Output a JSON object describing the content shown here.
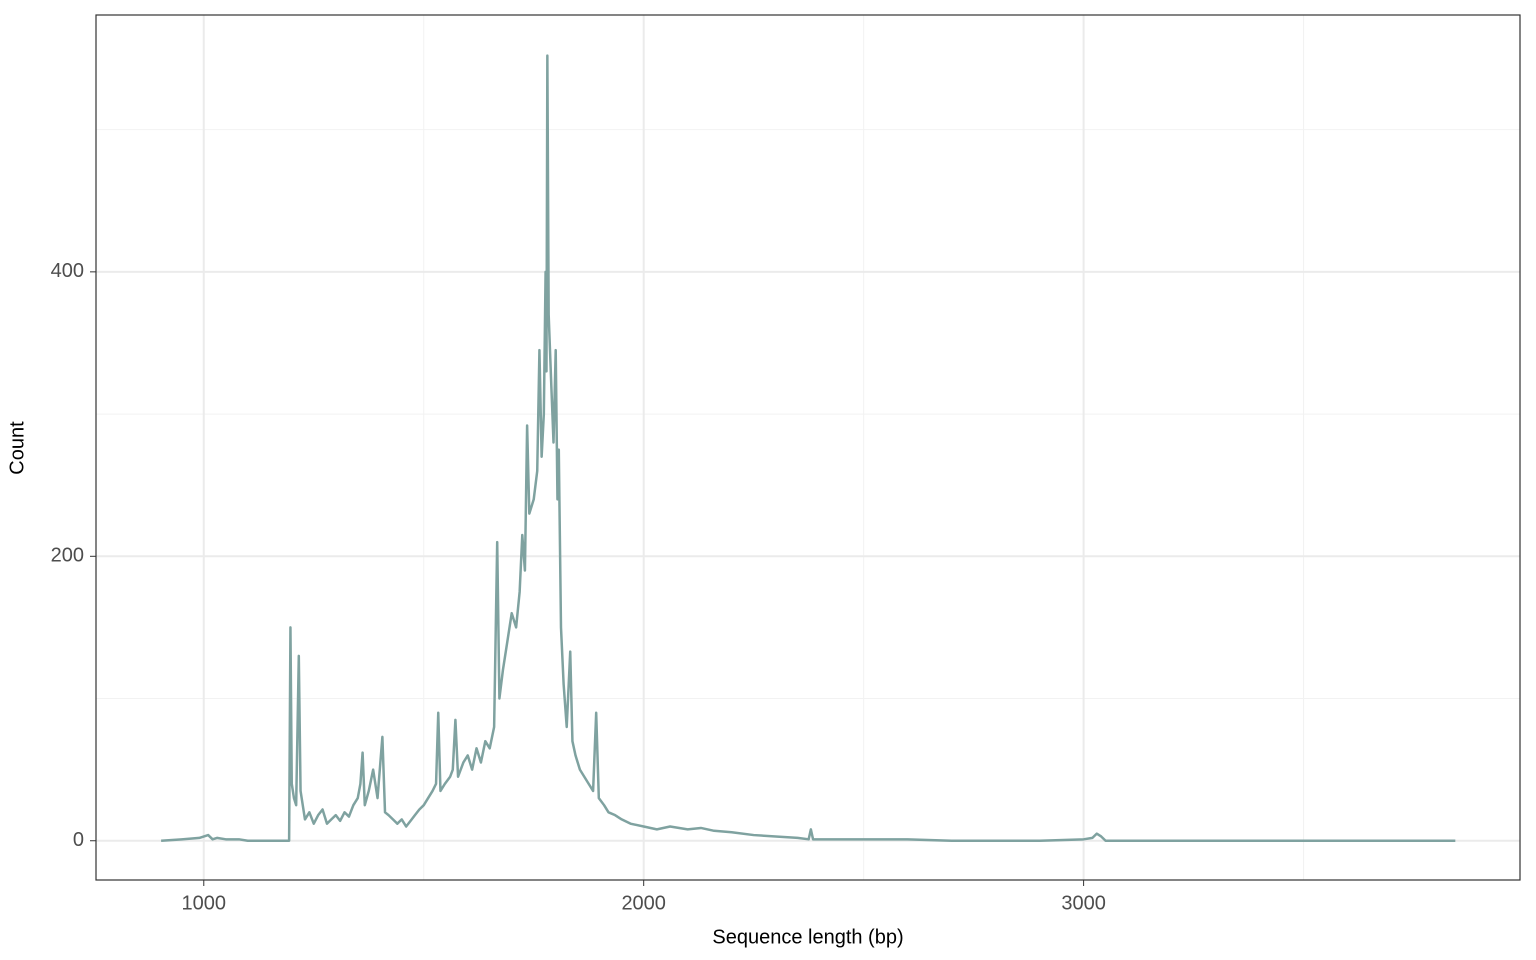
{
  "chart_data": {
    "type": "line",
    "x_label": "Sequence length (bp)",
    "y_label": "Count",
    "color": "#7fa2a0",
    "x": [
      903,
      950,
      990,
      1010,
      1020,
      1030,
      1050,
      1080,
      1100,
      1150,
      1194,
      1197,
      1200,
      1205,
      1210,
      1216,
      1220,
      1230,
      1240,
      1250,
      1260,
      1270,
      1280,
      1290,
      1300,
      1310,
      1320,
      1330,
      1340,
      1350,
      1356,
      1361,
      1366,
      1375,
      1385,
      1395,
      1406,
      1412,
      1420,
      1430,
      1440,
      1450,
      1460,
      1470,
      1480,
      1490,
      1500,
      1510,
      1520,
      1528,
      1533,
      1538,
      1548,
      1560,
      1566,
      1572,
      1578,
      1590,
      1600,
      1610,
      1620,
      1630,
      1640,
      1650,
      1660,
      1667,
      1672,
      1680,
      1690,
      1700,
      1710,
      1718,
      1724,
      1730,
      1735,
      1740,
      1750,
      1758,
      1763,
      1768,
      1773,
      1777,
      1779,
      1781,
      1784,
      1790,
      1795,
      1800,
      1804,
      1807,
      1812,
      1818,
      1825,
      1833,
      1838,
      1845,
      1855,
      1865,
      1875,
      1885,
      1892,
      1898,
      1910,
      1920,
      1935,
      1950,
      1970,
      2000,
      2030,
      2060,
      2100,
      2130,
      2160,
      2200,
      2250,
      2300,
      2350,
      2375,
      2380,
      2385,
      2450,
      2500,
      2600,
      2700,
      2800,
      2900,
      3000,
      3020,
      3030,
      3040,
      3050,
      3100,
      3200,
      3400,
      3600,
      3845
    ],
    "values": [
      0,
      1,
      2,
      4,
      1,
      2,
      1,
      1,
      0,
      0,
      0,
      150,
      40,
      30,
      25,
      130,
      35,
      15,
      20,
      12,
      18,
      22,
      12,
      15,
      18,
      14,
      20,
      17,
      25,
      30,
      40,
      62,
      25,
      35,
      50,
      30,
      73,
      20,
      18,
      15,
      12,
      15,
      10,
      14,
      18,
      22,
      25,
      30,
      35,
      40,
      90,
      35,
      40,
      45,
      50,
      85,
      45,
      55,
      60,
      50,
      65,
      55,
      70,
      65,
      80,
      210,
      100,
      120,
      140,
      160,
      150,
      175,
      215,
      190,
      292,
      230,
      240,
      260,
      345,
      270,
      300,
      400,
      330,
      552,
      370,
      320,
      280,
      345,
      240,
      275,
      150,
      110,
      80,
      133,
      70,
      60,
      50,
      45,
      40,
      35,
      90,
      30,
      25,
      20,
      18,
      15,
      12,
      10,
      8,
      10,
      8,
      9,
      7,
      6,
      4,
      3,
      2,
      1,
      8,
      1,
      1,
      1,
      1,
      0,
      0,
      0,
      1,
      2,
      5,
      3,
      0,
      0,
      0,
      0,
      0,
      0
    ],
    "xlim": [
      755,
      3992
    ],
    "xticks": [
      1000,
      2000,
      3000
    ],
    "xminor": [
      1500,
      2500,
      3500
    ],
    "ylim": [
      -27.6,
      580.6
    ],
    "yticks": [
      0,
      200,
      400
    ],
    "yminor": [
      100,
      300,
      500
    ],
    "grid": true
  }
}
